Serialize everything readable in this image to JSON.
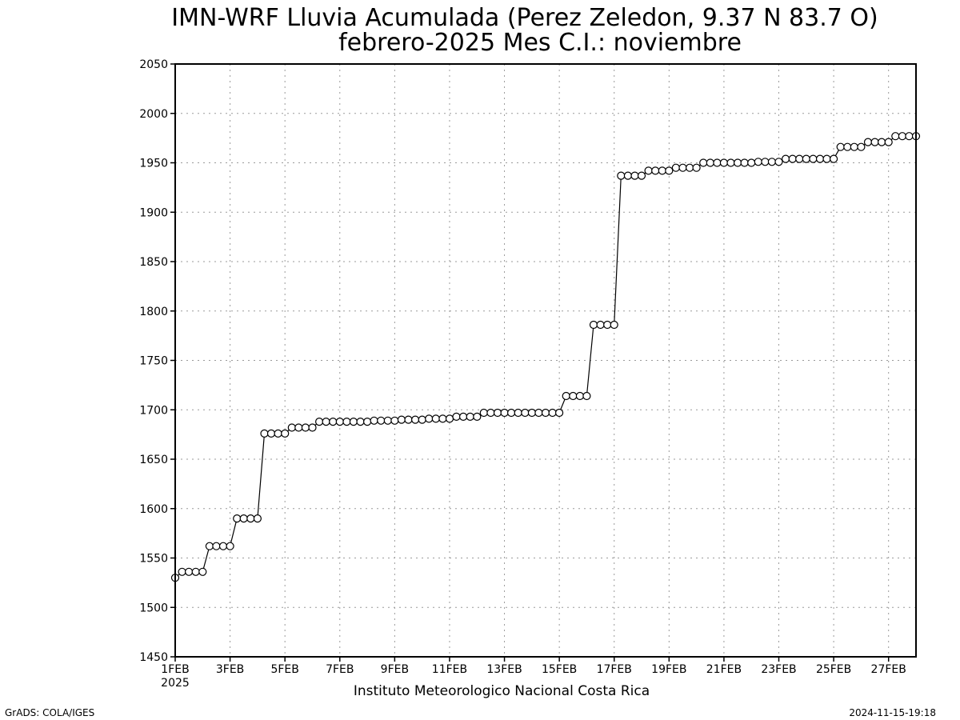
{
  "chart_data": {
    "type": "line",
    "title": "IMN-WRF  Lluvia Acumulada  (Perez Zeledon, 9.37  N 83.7  O)",
    "subtitle": "febrero-2025 Mes C.I.: noviembre",
    "xlabel": "",
    "ylabel": "",
    "ylim": [
      1450,
      2050
    ],
    "yticks": [
      "1450",
      "1500",
      "1550",
      "1600",
      "1650",
      "1700",
      "1750",
      "1800",
      "1850",
      "1900",
      "1950",
      "2000",
      "2050"
    ],
    "xlim_days": [
      1,
      28
    ],
    "xticks": [
      {
        "day": 1,
        "label": "1FEB",
        "sublabel": "2025"
      },
      {
        "day": 3,
        "label": "3FEB"
      },
      {
        "day": 5,
        "label": "5FEB"
      },
      {
        "day": 7,
        "label": "7FEB"
      },
      {
        "day": 9,
        "label": "9FEB"
      },
      {
        "day": 11,
        "label": "11FEB"
      },
      {
        "day": 13,
        "label": "13FEB"
      },
      {
        "day": 15,
        "label": "15FEB"
      },
      {
        "day": 17,
        "label": "17FEB"
      },
      {
        "day": 19,
        "label": "19FEB"
      },
      {
        "day": 21,
        "label": "21FEB"
      },
      {
        "day": 23,
        "label": "23FEB"
      },
      {
        "day": 25,
        "label": "25FEB"
      },
      {
        "day": 27,
        "label": "27FEB"
      }
    ],
    "grid": true,
    "marker": "open-circle",
    "series": [
      {
        "x_day": [
          1.0,
          1.25,
          1.5,
          1.75,
          2.0,
          2.25,
          2.5,
          2.75,
          3.0,
          3.25,
          3.5,
          3.75,
          4.0,
          4.25,
          4.5,
          4.75,
          5.0,
          5.25,
          5.5,
          5.75,
          6.0,
          6.25,
          6.5,
          6.75,
          7.0,
          7.25,
          7.5,
          7.75,
          8.0,
          8.25,
          8.5,
          8.75,
          9.0,
          9.25,
          9.5,
          9.75,
          10.0,
          10.25,
          10.5,
          10.75,
          11.0,
          11.25,
          11.5,
          11.75,
          12.0,
          12.25,
          12.5,
          12.75,
          13.0,
          13.25,
          13.5,
          13.75,
          14.0,
          14.25,
          14.5,
          14.75,
          15.0,
          15.25,
          15.5,
          15.75,
          16.0,
          16.25,
          16.5,
          16.75,
          17.0,
          17.25,
          17.5,
          17.75,
          18.0,
          18.25,
          18.5,
          18.75,
          19.0,
          19.25,
          19.5,
          19.75,
          20.0,
          20.25,
          20.5,
          20.75,
          21.0,
          21.25,
          21.5,
          21.75,
          22.0,
          22.25,
          22.5,
          22.75,
          23.0,
          23.25,
          23.5,
          23.75,
          24.0,
          24.25,
          24.5,
          24.75,
          25.0,
          25.25,
          25.5,
          25.75,
          26.0,
          26.25,
          26.5,
          26.75,
          27.0,
          27.25,
          27.5,
          27.75,
          28.0
        ],
        "values": [
          1530,
          1536,
          1536,
          1536,
          1536,
          1562,
          1562,
          1562,
          1562,
          1590,
          1590,
          1590,
          1590,
          1676,
          1676,
          1676,
          1676,
          1682,
          1682,
          1682,
          1682,
          1688,
          1688,
          1688,
          1688,
          1688,
          1688,
          1688,
          1688,
          1689,
          1689,
          1689,
          1689,
          1690,
          1690,
          1690,
          1690,
          1691,
          1691,
          1691,
          1691,
          1693,
          1693,
          1693,
          1693,
          1697,
          1697,
          1697,
          1697,
          1697,
          1697,
          1697,
          1697,
          1697,
          1697,
          1697,
          1697,
          1714,
          1714,
          1714,
          1714,
          1786,
          1786,
          1786,
          1786,
          1937,
          1937,
          1937,
          1937,
          1942,
          1942,
          1942,
          1942,
          1945,
          1945,
          1945,
          1945,
          1950,
          1950,
          1950,
          1950,
          1950,
          1950,
          1950,
          1950,
          1951,
          1951,
          1951,
          1951,
          1954,
          1954,
          1954,
          1954,
          1954,
          1954,
          1954,
          1954,
          1966,
          1966,
          1966,
          1966,
          1971,
          1971,
          1971,
          1971,
          1977,
          1977,
          1977,
          1977
        ]
      }
    ]
  },
  "footer": {
    "institution": "Instituto Meteorologico Nacional Costa Rica",
    "software": "GrADS: COLA/IGES",
    "timestamp": "2024-11-15-19:18"
  }
}
